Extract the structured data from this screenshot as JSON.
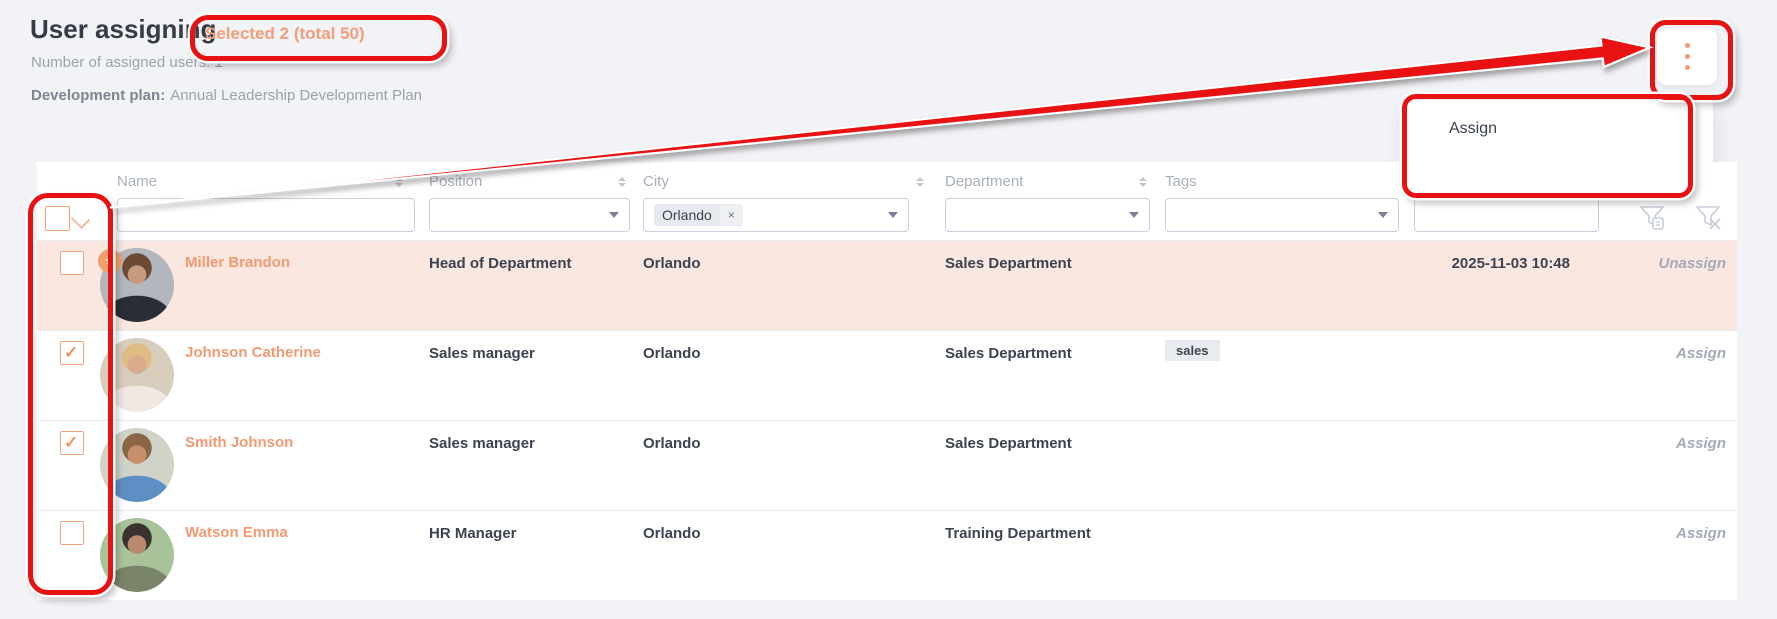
{
  "page": {
    "title": "User assigning",
    "selected_badge": "Selected 2 (total 50)",
    "assigned_count_line": "Number of assigned users: 1",
    "plan_label": "Development plan:",
    "plan_value": "Annual Leadership Development Plan"
  },
  "menu": {
    "assign_label": "Assign",
    "unassign_label": "Unassign"
  },
  "table": {
    "columns": [
      {
        "label": "Name"
      },
      {
        "label": "Position"
      },
      {
        "label": "City"
      },
      {
        "label": "Department"
      },
      {
        "label": "Tags"
      }
    ],
    "filters": {
      "city_chip": "Orlando",
      "city_chip_remove": "×"
    },
    "rows": [
      {
        "name": "Miller Brandon",
        "position": "Head of Department",
        "city": "Orlando",
        "department": "Sales Department",
        "tags": [],
        "assigned_at": "2025-11-03 10:48",
        "action": "Unassign",
        "checked": false,
        "starred": true,
        "highlighted": true,
        "avatar": {
          "skin": "#c59a7e",
          "hair": "#6b4a35",
          "torso": "#2a2d34",
          "bg": "#b3b7bd"
        }
      },
      {
        "name": "Johnson Catherine",
        "position": "Sales manager",
        "city": "Orlando",
        "department": "Sales Department",
        "tags": [
          "sales"
        ],
        "assigned_at": "",
        "action": "Assign",
        "checked": true,
        "starred": false,
        "highlighted": false,
        "avatar": {
          "skin": "#d8ab8d",
          "hair": "#e0bd85",
          "torso": "#efe9e2",
          "bg": "#d9cdbd"
        }
      },
      {
        "name": "Smith Johnson",
        "position": "Sales manager",
        "city": "Orlando",
        "department": "Sales Department",
        "tags": [],
        "assigned_at": "",
        "action": "Assign",
        "checked": true,
        "starred": false,
        "highlighted": false,
        "avatar": {
          "skin": "#c98f6d",
          "hair": "#8a6647",
          "torso": "#5d8fc4",
          "bg": "#cfd3c8"
        }
      },
      {
        "name": "Watson Emma",
        "position": "HR Manager",
        "city": "Orlando",
        "department": "Training Department",
        "tags": [],
        "assigned_at": "",
        "action": "Assign",
        "checked": false,
        "starred": false,
        "highlighted": false,
        "avatar": {
          "skin": "#b98a6e",
          "hair": "#3a3330",
          "torso": "#7a8468",
          "bg": "#a8c29a"
        }
      }
    ]
  },
  "icons": {
    "star": "★",
    "kebab": "vertical-three-dots",
    "funnel_saved": "filter-with-list",
    "funnel_clear": "filter-clear"
  },
  "colors": {
    "accent_orange": "#f29a73",
    "annotation_red": "#e81212",
    "row_highlight": "#f9e7e0",
    "page_bg": "#f2f3f6"
  }
}
